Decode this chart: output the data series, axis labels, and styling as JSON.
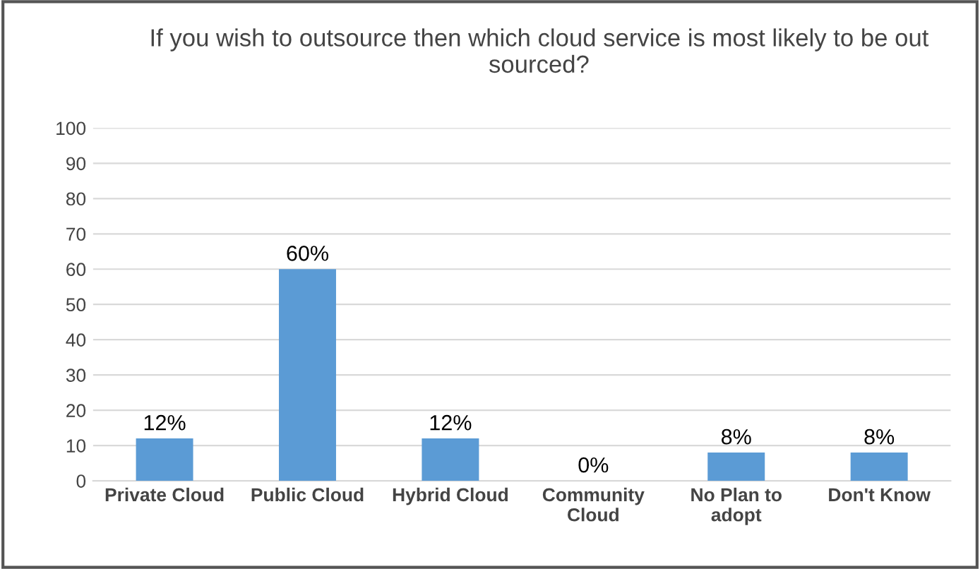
{
  "chart_data": {
    "type": "bar",
    "title": "If you wish to outsource then which cloud service is most likely to be out sourced?",
    "categories": [
      "Private Cloud",
      "Public Cloud",
      "Hybrid Cloud",
      "Community Cloud",
      "No Plan to adopt",
      "Don't Know"
    ],
    "values": [
      12,
      60,
      12,
      0,
      8,
      8
    ],
    "value_labels": [
      "12%",
      "60%",
      "12%",
      "0%",
      "8%",
      "8%"
    ],
    "color": "#5b9bd5",
    "ylim": [
      0,
      100
    ],
    "yticks": [
      0,
      10,
      20,
      30,
      40,
      50,
      60,
      70,
      80,
      90,
      100
    ],
    "grid": "y"
  }
}
